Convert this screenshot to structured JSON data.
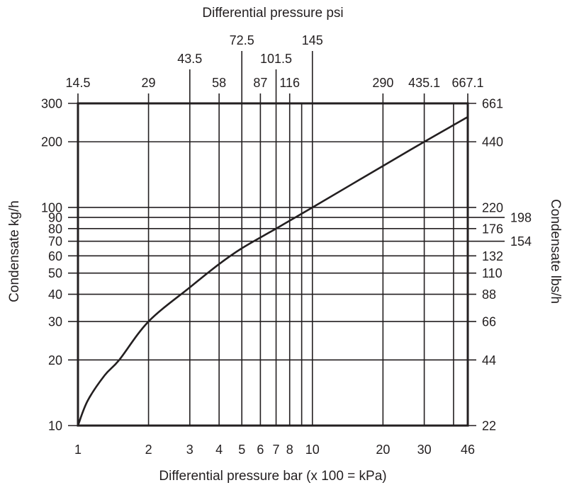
{
  "chart_data": {
    "type": "line",
    "scale": {
      "x": "log",
      "y": "log"
    },
    "grid": true,
    "xlabel": "Differential pressure bar (x 100 = kPa)",
    "x2label": "Differential pressure psi",
    "ylabel": "Condensate kg/h",
    "y2label": "Condensate lbs/h",
    "xlim": [
      1,
      46
    ],
    "ylim": [
      10,
      300
    ],
    "x_gridlines": [
      1,
      2,
      3,
      4,
      5,
      6,
      7,
      8,
      9,
      10,
      20,
      30,
      40,
      46
    ],
    "x_ticks": [
      {
        "value": 1,
        "label": "1"
      },
      {
        "value": 2,
        "label": "2"
      },
      {
        "value": 3,
        "label": "3"
      },
      {
        "value": 4,
        "label": "4"
      },
      {
        "value": 5,
        "label": "5"
      },
      {
        "value": 6,
        "label": "6"
      },
      {
        "value": 7,
        "label": "7"
      },
      {
        "value": 8,
        "label": "8"
      },
      {
        "value": 10,
        "label": "10"
      },
      {
        "value": 20,
        "label": "20"
      },
      {
        "value": 30,
        "label": "30"
      },
      {
        "value": 46,
        "label": "46"
      }
    ],
    "x2_ticks": [
      {
        "value": 1,
        "label": "14.5",
        "row": 1
      },
      {
        "value": 2,
        "label": "29",
        "row": 1
      },
      {
        "value": 3,
        "label": "43.5",
        "row": 2
      },
      {
        "value": 4,
        "label": "58",
        "row": 1
      },
      {
        "value": 5,
        "label": "72.5",
        "row": 3
      },
      {
        "value": 6,
        "label": "87",
        "row": 1
      },
      {
        "value": 7,
        "label": "101.5",
        "row": 2
      },
      {
        "value": 8,
        "label": "116",
        "row": 1
      },
      {
        "value": 10,
        "label": "145",
        "row": 3
      },
      {
        "value": 20,
        "label": "290",
        "row": 1
      },
      {
        "value": 30,
        "label": "435.1",
        "row": 1
      },
      {
        "value": 46,
        "label": "667.1",
        "row": 1
      }
    ],
    "y_ticks": [
      {
        "value": 10,
        "label": "10"
      },
      {
        "value": 20,
        "label": "20"
      },
      {
        "value": 30,
        "label": "30"
      },
      {
        "value": 40,
        "label": "40"
      },
      {
        "value": 50,
        "label": "50"
      },
      {
        "value": 60,
        "label": "60"
      },
      {
        "value": 70,
        "label": "70"
      },
      {
        "value": 80,
        "label": "80"
      },
      {
        "value": 90,
        "label": "90"
      },
      {
        "value": 100,
        "label": "100"
      },
      {
        "value": 200,
        "label": "200"
      },
      {
        "value": 300,
        "label": "300"
      }
    ],
    "y2_ticks": [
      {
        "value": 10,
        "label": "22",
        "row": 1
      },
      {
        "value": 20,
        "label": "44",
        "row": 1
      },
      {
        "value": 30,
        "label": "66",
        "row": 1
      },
      {
        "value": 40,
        "label": "88",
        "row": 1
      },
      {
        "value": 50,
        "label": "110",
        "row": 1
      },
      {
        "value": 60,
        "label": "132",
        "row": 1
      },
      {
        "value": 70,
        "label": "154",
        "row": 2
      },
      {
        "value": 80,
        "label": "176",
        "row": 1
      },
      {
        "value": 90,
        "label": "198",
        "row": 2
      },
      {
        "value": 100,
        "label": "220",
        "row": 1
      },
      {
        "value": 200,
        "label": "440",
        "row": 1
      },
      {
        "value": 300,
        "label": "661",
        "row": 1
      }
    ],
    "series": [
      {
        "x": [
          1,
          1.1,
          1.3,
          1.5,
          2,
          3,
          4,
          5,
          7,
          10,
          20,
          30,
          46
        ],
        "y": [
          10,
          13,
          17,
          20,
          30,
          43,
          55,
          65,
          80,
          100,
          155,
          200,
          260
        ]
      }
    ]
  }
}
